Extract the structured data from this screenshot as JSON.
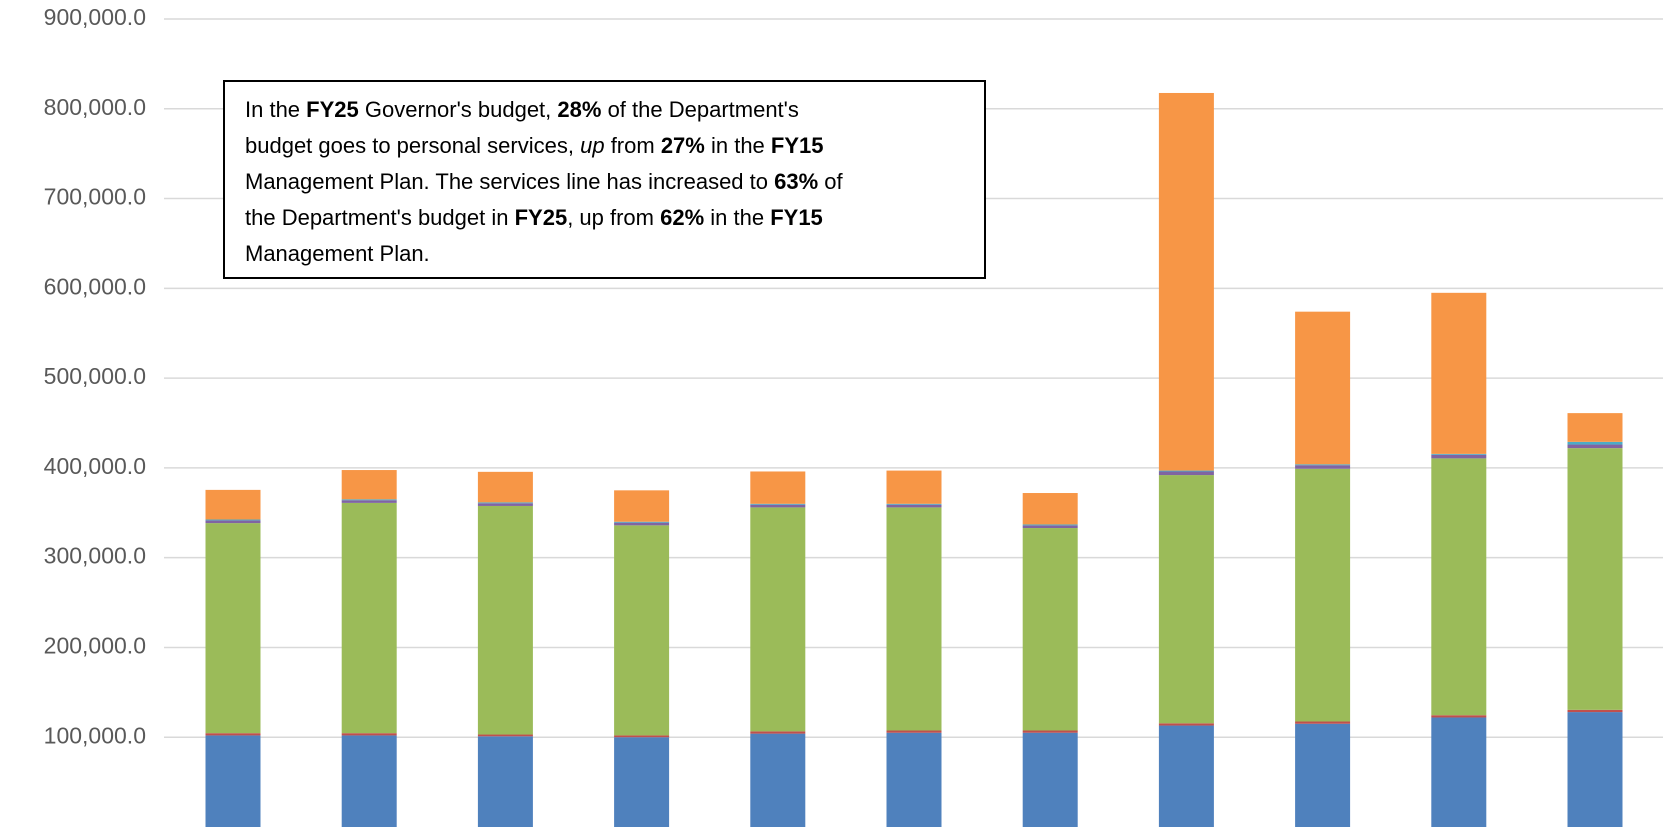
{
  "chart_data": {
    "type": "stacked_bar",
    "categories": [
      null,
      null,
      null,
      null,
      null,
      null,
      null,
      null,
      null,
      null,
      null
    ],
    "series": [
      {
        "color": "#4f81bd",
        "values": [
          102000,
          102000,
          101000,
          100000,
          104000,
          105000,
          105000,
          113000,
          115000,
          122000,
          128000
        ]
      },
      {
        "color": "#c0504d",
        "values": [
          2500,
          2500,
          2000,
          2000,
          2500,
          2500,
          2500,
          2500,
          2500,
          2500,
          2500
        ]
      },
      {
        "color": "#9bbb59",
        "values": [
          234000,
          256500,
          254600,
          234000,
          249500,
          248500,
          225500,
          276500,
          281500,
          286100,
          291500
        ]
      },
      {
        "color": "#8064a2",
        "values": [
          3000,
          3000,
          3000,
          3000,
          3000,
          3000,
          3000,
          4000,
          4000,
          4000,
          4000
        ]
      },
      {
        "color": "#4bacc6",
        "values": [
          1000,
          1000,
          1000,
          1000,
          1000,
          1000,
          1000,
          1000,
          1000,
          1000,
          3000
        ]
      },
      {
        "color": "#f79646",
        "values": [
          33000,
          32600,
          34000,
          35000,
          36000,
          37000,
          35000,
          420600,
          170000,
          179400,
          32000
        ]
      }
    ],
    "ylim": [
      0,
      900000
    ],
    "yticks": [
      {
        "value": 100000,
        "label": "100,000.0"
      },
      {
        "value": 200000,
        "label": "200,000.0"
      },
      {
        "value": 300000,
        "label": "300,000.0"
      },
      {
        "value": 400000,
        "label": "400,000.0"
      },
      {
        "value": 500000,
        "label": "500,000.0"
      },
      {
        "value": 600000,
        "label": "600,000.0"
      },
      {
        "value": 700000,
        "label": "700,000.0"
      },
      {
        "value": 800000,
        "label": "800,000.0"
      },
      {
        "value": 900000,
        "label": "900,000.0"
      }
    ],
    "grid": true,
    "annotation": [
      [
        {
          "text": "In the "
        },
        {
          "text": "FY25",
          "style": "bold"
        },
        {
          "text": " Governor's budget, "
        },
        {
          "text": "28%",
          "style": "bold"
        },
        {
          "text": " of the Department's"
        }
      ],
      [
        {
          "text": "budget goes to personal services, "
        },
        {
          "text": "up",
          "style": "italic"
        },
        {
          "text": " from "
        },
        {
          "text": "27%",
          "style": "bold"
        },
        {
          "text": " in the "
        },
        {
          "text": "FY15",
          "style": "bold"
        }
      ],
      [
        {
          "text": "Management Plan. The services line has increased to "
        },
        {
          "text": "63%",
          "style": "bold"
        },
        {
          "text": " of"
        }
      ],
      [
        {
          "text": "the Department's budget in "
        },
        {
          "text": "FY25",
          "style": "bold"
        },
        {
          "text": ", up from "
        },
        {
          "text": "62%",
          "style": "bold"
        },
        {
          "text": " in the "
        },
        {
          "text": "FY15",
          "style": "bold"
        }
      ],
      [
        {
          "text": "Management Plan."
        }
      ]
    ]
  }
}
